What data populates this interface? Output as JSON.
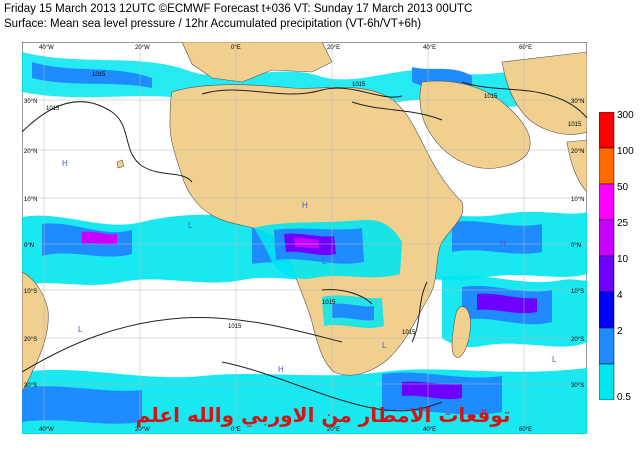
{
  "header": {
    "line1": "Friday 15 March 2013 12UTC ©ECMWF Forecast t+036 VT: Sunday 17 March 2013 00UTC",
    "line2": "Surface: Mean sea level pressure / 12hr Accumulated precipitation (VT-6h/VT+6h)"
  },
  "map": {
    "lon_labels_top": [
      "40°W",
      "20°W",
      "0°E",
      "20°E",
      "40°E",
      "60°E"
    ],
    "lon_labels_bottom": [
      "40°W",
      "20°W",
      "0°E",
      "20°E",
      "40°E",
      "60°E"
    ],
    "lat_labels_left": [
      "30°N",
      "20°N",
      "10°N",
      "0°N",
      "10°S",
      "20°S",
      "30°S"
    ],
    "lat_labels_right": [
      "30°N",
      "20°N",
      "10°N",
      "0°N",
      "10°S",
      "20°S",
      "30°S"
    ],
    "isobar_labels": [
      "1015",
      "1015",
      "1015",
      "1015",
      "1015",
      "1015",
      "1015",
      "1015"
    ],
    "pressure_markers": [
      "H",
      "L",
      "H",
      "L",
      "L",
      "H",
      "L",
      "H",
      "L"
    ],
    "colors": {
      "ocean": "#ffffff",
      "land": "#f1cf8f",
      "grid": "#b8b8b8"
    }
  },
  "legend": {
    "values": [
      "300",
      "100",
      "50",
      "25",
      "10",
      "4",
      "2",
      "0.5"
    ],
    "colors": [
      "#ff0000",
      "#ff6a00",
      "#ff00ff",
      "#c800ff",
      "#6e00ff",
      "#0000ff",
      "#1e8cff",
      "#00e6f0"
    ]
  },
  "overlay_text": "توقعات الامطار من الاوربي والله اعلم"
}
